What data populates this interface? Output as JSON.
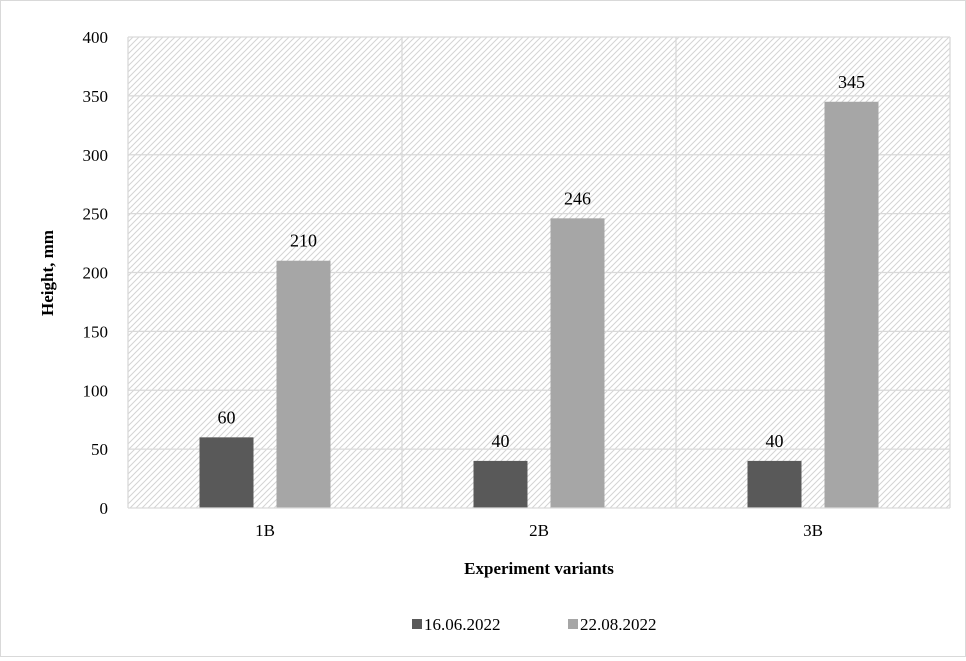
{
  "chart_data": {
    "type": "bar",
    "categories": [
      "1B",
      "2B",
      "3B"
    ],
    "series": [
      {
        "name": "16.06.2022",
        "values": [
          60,
          40,
          40
        ],
        "color": "#595959"
      },
      {
        "name": "22.08.2022",
        "values": [
          210,
          246,
          345
        ],
        "color": "#a6a6a6"
      }
    ],
    "xlabel": "Experiment variants",
    "ylabel": "Height, mm",
    "ylim": [
      0,
      400
    ],
    "yticks": [
      0,
      50,
      100,
      150,
      200,
      250,
      300,
      350,
      400
    ],
    "grid": true,
    "plot_background": "diagonal hatch",
    "data_labels": true,
    "legend_position": "bottom"
  }
}
